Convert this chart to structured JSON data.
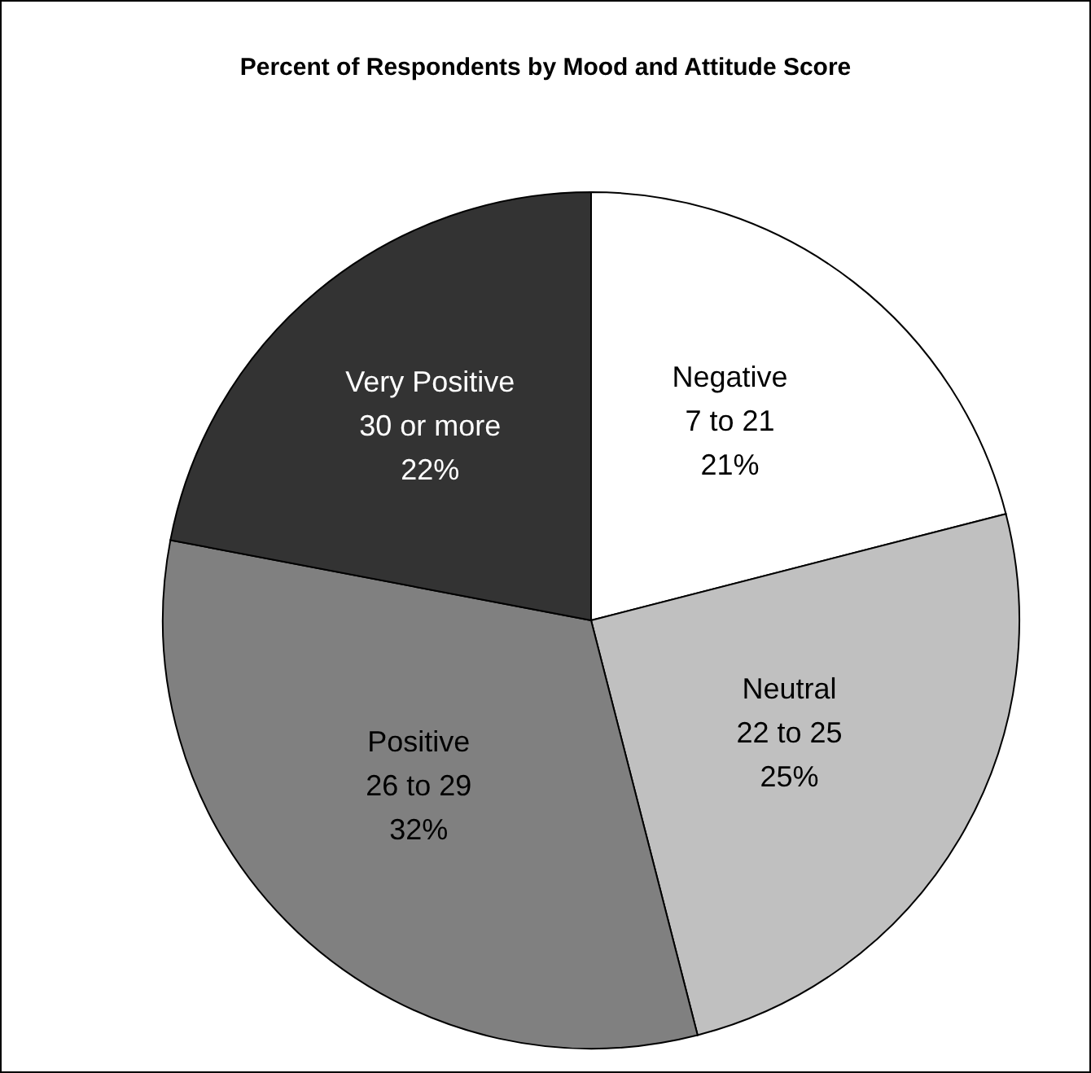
{
  "chart_data": {
    "type": "pie",
    "title": "Percent of Respondents by Mood and Attitude Score",
    "categories": [
      "Negative\n7 to 21",
      "Neutral\n22 to 25",
      "Positive\n26 to 29",
      "Very Positive\n30 or more"
    ],
    "values": [
      21,
      25,
      32,
      22
    ],
    "value_labels": [
      "21%",
      "25%",
      "32%",
      "22%"
    ],
    "colors": [
      "#ffffff",
      "#c0c0c0",
      "#808080",
      "#333333"
    ]
  }
}
